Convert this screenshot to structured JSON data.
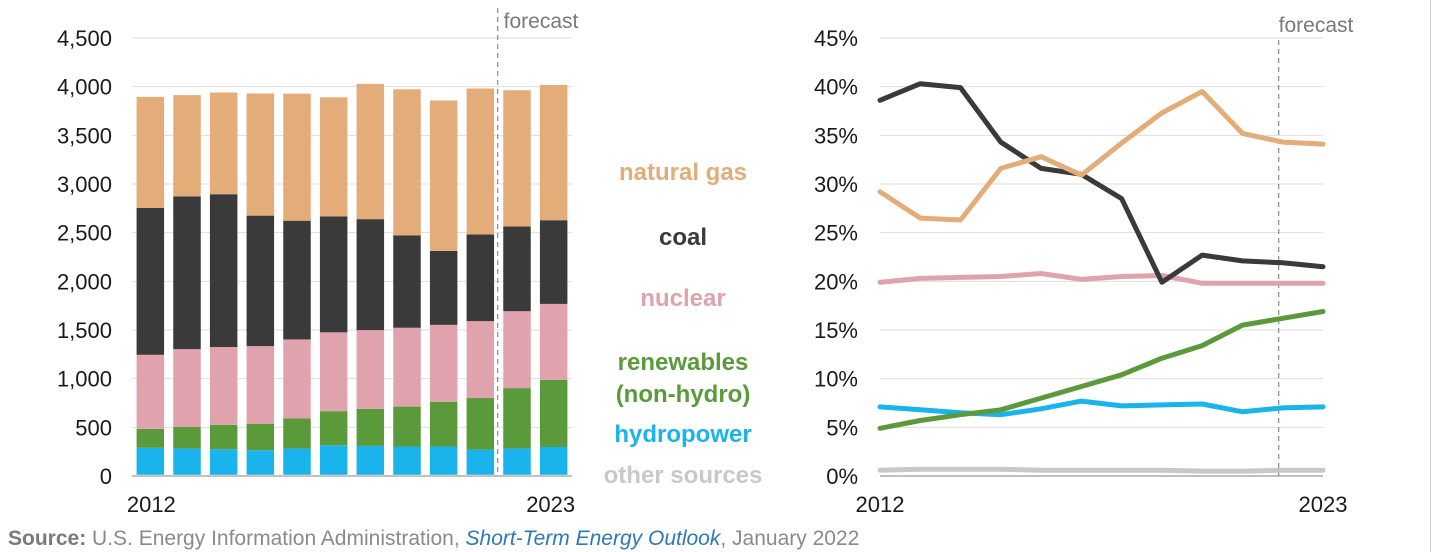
{
  "chart_data": [
    {
      "type": "bar",
      "stacked": true,
      "categories": [
        "2012",
        "2013",
        "2014",
        "2015",
        "2016",
        "2017",
        "2018",
        "2019",
        "2020",
        "2021",
        "2022",
        "2023"
      ],
      "x_tick_labels": [
        "2012",
        "2023"
      ],
      "y_tick_labels": [
        "0",
        "500",
        "1,000",
        "1,500",
        "2,000",
        "2,500",
        "3,000",
        "3,500",
        "4,000",
        "4,500"
      ],
      "ylim": [
        0,
        4500
      ],
      "forecast_label": "forecast",
      "forecast_start_category": "2022",
      "series": [
        {
          "name": "other sources",
          "color": "#c8c8c8",
          "values": [
            13,
            13,
            13,
            13,
            13,
            13,
            13,
            13,
            13,
            13,
            13,
            13
          ]
        },
        {
          "name": "hydropower",
          "color": "#1ab3ec",
          "values": [
            277,
            270,
            262,
            252,
            270,
            303,
            296,
            290,
            290,
            258,
            270,
            285
          ]
        },
        {
          "name": "renewables (non-hydro)",
          "color": "#5a9a3a",
          "values": [
            195,
            220,
            250,
            270,
            310,
            350,
            380,
            410,
            460,
            530,
            620,
            690
          ]
        },
        {
          "name": "nuclear",
          "color": "#e0a3ae",
          "values": [
            760,
            800,
            800,
            800,
            810,
            810,
            810,
            810,
            790,
            790,
            790,
            780
          ]
        },
        {
          "name": "coal",
          "color": "#3a3a3a",
          "values": [
            1510,
            1570,
            1570,
            1340,
            1220,
            1190,
            1140,
            950,
            760,
            890,
            870,
            860
          ]
        },
        {
          "name": "natural gas",
          "color": "#e3ac78",
          "values": [
            1140,
            1040,
            1045,
            1255,
            1305,
            1225,
            1390,
            1500,
            1545,
            1500,
            1400,
            1390
          ]
        }
      ]
    },
    {
      "type": "line",
      "x": [
        "2012",
        "2013",
        "2014",
        "2015",
        "2016",
        "2017",
        "2018",
        "2019",
        "2020",
        "2021",
        "2022",
        "2023"
      ],
      "x_tick_labels": [
        "2012",
        "2023"
      ],
      "y_tick_labels": [
        "0%",
        "5%",
        "10%",
        "15%",
        "20%",
        "25%",
        "30%",
        "35%",
        "40%",
        "45%"
      ],
      "ylim": [
        0,
        45
      ],
      "forecast_label": "forecast",
      "forecast_start_x": "2022",
      "series": [
        {
          "name": "natural gas",
          "color": "#e3ac78",
          "values": [
            29.2,
            26.5,
            26.3,
            31.6,
            32.8,
            30.9,
            34.2,
            37.3,
            39.5,
            35.2,
            34.3,
            34.1
          ]
        },
        {
          "name": "coal",
          "color": "#3a3a3a",
          "values": [
            38.6,
            40.3,
            39.9,
            34.3,
            31.6,
            31.0,
            28.5,
            19.9,
            22.7,
            22.1,
            21.9,
            21.5
          ]
        },
        {
          "name": "nuclear",
          "color": "#e0a3ae",
          "values": [
            19.9,
            20.3,
            20.4,
            20.5,
            20.8,
            20.2,
            20.5,
            20.6,
            19.8,
            19.8,
            19.8,
            19.8
          ]
        },
        {
          "name": "renewables (non-hydro)",
          "color": "#5a9a3a",
          "values": [
            4.9,
            5.7,
            6.3,
            6.8,
            8.0,
            9.2,
            10.4,
            12.1,
            13.4,
            15.5,
            16.2,
            16.9
          ]
        },
        {
          "name": "hydropower",
          "color": "#1ab3ec",
          "values": [
            7.1,
            6.8,
            6.5,
            6.3,
            6.9,
            7.7,
            7.2,
            7.3,
            7.4,
            6.6,
            7.0,
            7.1
          ]
        },
        {
          "name": "other sources",
          "color": "#c8c8c8",
          "values": [
            0.6,
            0.7,
            0.7,
            0.7,
            0.6,
            0.6,
            0.6,
            0.6,
            0.5,
            0.5,
            0.6,
            0.6
          ]
        }
      ]
    }
  ],
  "legend": [
    {
      "label": "natural gas",
      "color": "#e3ac78"
    },
    {
      "label": "coal",
      "color": "#3a3a3a"
    },
    {
      "label": "nuclear",
      "color": "#e0a3ae"
    },
    {
      "label": "renewables\n(non-hydro)",
      "color": "#5a9a3a"
    },
    {
      "label": "hydropower",
      "color": "#1ab3ec"
    },
    {
      "label": "other sources",
      "color": "#c8c8c8"
    }
  ],
  "source": {
    "prefix": "Source:",
    "text": " U.S. Energy Information Administration, ",
    "link": "Short-Term Energy Outlook",
    "suffix": ", January 2022"
  }
}
